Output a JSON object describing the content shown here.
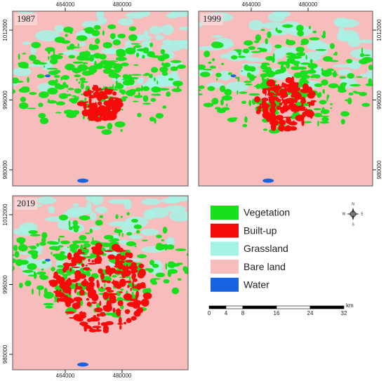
{
  "maps": {
    "panels": [
      {
        "label": "1987",
        "xticks": [
          464000,
          480000
        ],
        "yticks": [
          1012000,
          996000,
          980000
        ]
      },
      {
        "label": "1999",
        "xticks": [
          464000,
          480000
        ],
        "yticks": [
          1012000,
          996000,
          980000
        ]
      },
      {
        "label": "2019",
        "xticks": [
          464000,
          480000
        ],
        "yticks": [
          1012000,
          996000,
          980000
        ]
      }
    ],
    "legend": [
      {
        "name": "Vegetation",
        "color": "#18e01c"
      },
      {
        "name": "Built-up",
        "color": "#f70a0a"
      },
      {
        "name": "Grassland",
        "color": "#a6f3e6"
      },
      {
        "name": "Bare land",
        "color": "#f7bcbc"
      },
      {
        "name": "Water",
        "color": "#1763e0"
      }
    ],
    "compass": {
      "n": "N",
      "s": "S",
      "e": "E",
      "w": "W"
    },
    "scale_bar": {
      "ticks": [
        0,
        4,
        8,
        16,
        24,
        32
      ],
      "unit": "km"
    }
  }
}
